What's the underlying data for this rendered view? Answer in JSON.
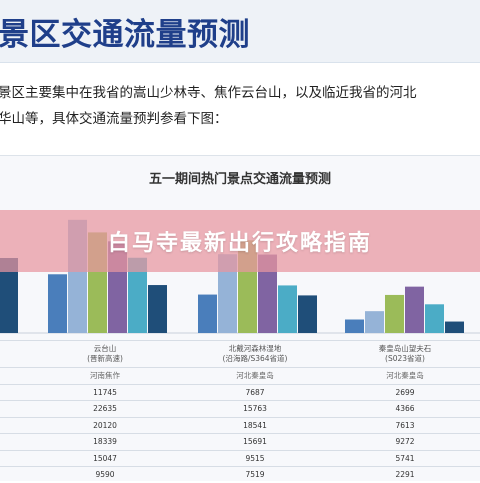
{
  "header": {
    "title": "景区交通流量预测"
  },
  "paragraph": {
    "line1": "景区主要集中在我省的嵩山少林寺、焦作云台山，以及临近我省的河北",
    "line2": "华山等，具体交通流量预判参看下图："
  },
  "banner": {
    "text": "白马寺最新出行攻略指南"
  },
  "chart_data": {
    "type": "bar",
    "title": "五一期间热门景点交通流量预测",
    "categories": [
      "云台山",
      "北戴河森林湿地",
      "秦皇岛山望夫石"
    ],
    "category_sub": [
      "(晋新高速)",
      "(沿海路/S364省道)",
      "(S023省道)"
    ],
    "category_region": [
      "河南焦作",
      "河北秦皇岛",
      "河北秦皇岛"
    ],
    "series": [
      {
        "color": "#4a7ebb",
        "values": [
          11745,
          7687,
          2699
        ]
      },
      {
        "color": "#95b3d7",
        "values": [
          22635,
          15763,
          4366
        ]
      },
      {
        "color": "#9bbb59",
        "values": [
          20120,
          18541,
          7613
        ]
      },
      {
        "color": "#8064a2",
        "values": [
          18339,
          15691,
          9272
        ]
      },
      {
        "color": "#4bacc6",
        "values": [
          15047,
          9515,
          5741
        ]
      },
      {
        "color": "#1f4e79",
        "values": [
          9590,
          7519,
          2291
        ]
      }
    ],
    "ylim": [
      0,
      25000
    ]
  },
  "left_partial_bars": {
    "colors": [
      "#1f4e79"
    ],
    "values": [
      15000
    ]
  }
}
